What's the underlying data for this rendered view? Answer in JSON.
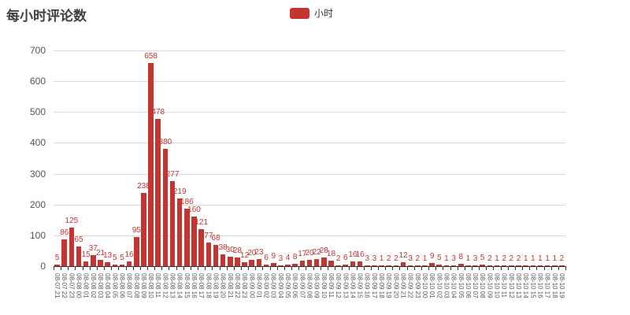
{
  "title": "每小时评论数",
  "legend": {
    "label": "小时",
    "color": "#c23531"
  },
  "chart_data": {
    "type": "bar",
    "title": "每小时评论数",
    "series_name": "小时",
    "bar_color": "#c23531",
    "label_color": "#c23531",
    "ylim": [
      0,
      700
    ],
    "yticks": [
      0,
      100,
      200,
      300,
      400,
      500,
      600,
      700
    ],
    "grid": true,
    "legend_position": "top-center",
    "x_label_rotation": 90,
    "x": [
      "08-07 21",
      "08-07 22",
      "08-07 23",
      "08-08 00",
      "08-08 01",
      "08-08 02",
      "08-08 03",
      "08-08 04",
      "08-08 05",
      "08-08 06",
      "08-08 07",
      "08-08 08",
      "08-08 09",
      "08-08 10",
      "08-08 11",
      "08-08 12",
      "08-08 13",
      "08-08 14",
      "08-08 15",
      "08-08 16",
      "08-08 17",
      "08-08 18",
      "08-08 19",
      "08-08 20",
      "08-08 21",
      "08-08 22",
      "08-08 23",
      "08-09 00",
      "08-09 01",
      "08-09 02",
      "08-09 03",
      "08-09 04",
      "08-09 05",
      "08-09 06",
      "08-09 07",
      "08-09 08",
      "08-09 09",
      "08-09 10",
      "08-09 11",
      "08-09 12",
      "08-09 13",
      "08-09 14",
      "08-09 15",
      "08-09 16",
      "08-09 17",
      "08-09 18",
      "08-09 19",
      "08-09 20",
      "08-09 21",
      "08-09 22",
      "08-09 23",
      "08-10 00",
      "08-10 01",
      "08-10 02",
      "08-10 03",
      "08-10 04",
      "08-10 05",
      "08-10 06",
      "08-10 07",
      "08-10 08",
      "08-10 09",
      "08-10 10",
      "08-10 11",
      "08-10 12",
      "08-10 13",
      "08-10 14",
      "08-10 15",
      "08-10 16",
      "08-10 17",
      "08-10 18",
      "08-10 19"
    ],
    "values": [
      5,
      86,
      125,
      65,
      15,
      37,
      21,
      13,
      5,
      5,
      16,
      95,
      238,
      658,
      478,
      380,
      277,
      219,
      186,
      160,
      121,
      77,
      68,
      38,
      30,
      28,
      12,
      20,
      23,
      6,
      9,
      3,
      4,
      8,
      17,
      20,
      22,
      28,
      18,
      2,
      6,
      16,
      16,
      3,
      3,
      1,
      2,
      2,
      12,
      3,
      2,
      1,
      9,
      5,
      1,
      3,
      8,
      1,
      3,
      5,
      2,
      1,
      2,
      2,
      2,
      1,
      1,
      1,
      1,
      1,
      2
    ]
  }
}
